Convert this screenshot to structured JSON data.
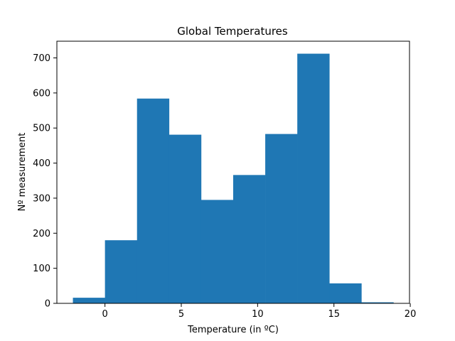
{
  "chart_data": {
    "type": "bar",
    "title": "Global Temperatures",
    "xlabel": "Temperature (in ºC)",
    "ylabel": "Nº measurement",
    "bin_edges": [
      -2.1,
      -0.0,
      2.1,
      4.2,
      6.3,
      8.4,
      10.5,
      12.6,
      14.7,
      16.8,
      18.9
    ],
    "values": [
      16,
      180,
      584,
      481,
      295,
      366,
      483,
      712,
      57,
      3
    ],
    "xlim": [
      -3.15,
      19.95
    ],
    "ylim": [
      0,
      747.6
    ],
    "xticks": [
      "0",
      "5",
      "10",
      "15",
      "20"
    ],
    "xtick_values": [
      0,
      5,
      10,
      15,
      20
    ],
    "yticks": [
      "0",
      "100",
      "200",
      "300",
      "400",
      "500",
      "600",
      "700"
    ],
    "ytick_values": [
      0,
      100,
      200,
      300,
      400,
      500,
      600,
      700
    ],
    "bar_color": "#1f77b4",
    "grid": false,
    "legend": "none"
  }
}
